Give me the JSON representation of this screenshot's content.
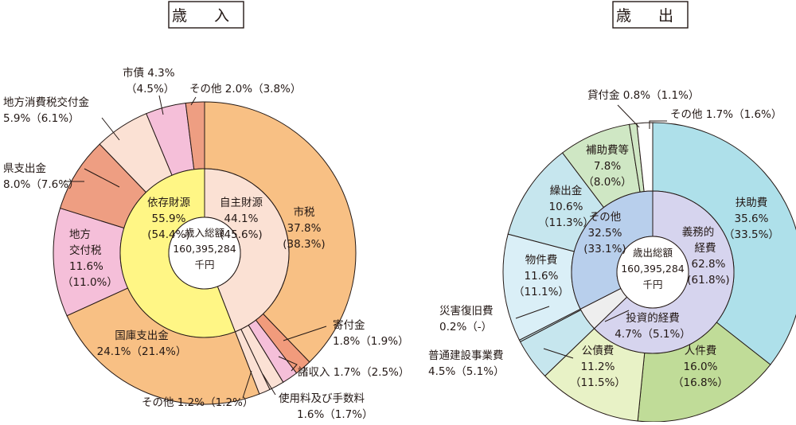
{
  "chart_data": [
    {
      "type": "pie",
      "title": "歳 入",
      "center_label": [
        "歳入総額",
        "160,395,284",
        "千円"
      ],
      "inner_ring": [
        {
          "name": "自主財源",
          "value": 44.1,
          "prev": "(45.6%)",
          "color": "#fbe1d4",
          "text": [
            "自主財源",
            "44.1%",
            "(45.6%)"
          ]
        },
        {
          "name": "依存財源",
          "value": 55.9,
          "prev": "(54.4%)",
          "color": "#fff685",
          "text": [
            "依存財源",
            "55.9%",
            "(54.4%)"
          ]
        }
      ],
      "outer_ring": [
        {
          "name": "市税",
          "value": 37.8,
          "color": "#f8c084",
          "text": [
            "市税",
            "37.8%",
            "(38.3%)"
          ]
        },
        {
          "name": "寄付金",
          "value": 1.8,
          "color": "#f19b7c",
          "text": [
            "寄付金",
            "1.8%（1.9%）"
          ]
        },
        {
          "name": "諸収入",
          "value": 1.7,
          "color": "#f5bfd9",
          "text": [
            "諸収入 1.7%（2.5%）"
          ]
        },
        {
          "name": "使用料及び手数料",
          "value": 1.6,
          "color": "#fbe1d4",
          "text": [
            "使用料及び手数料",
            "1.6%（1.7%）"
          ]
        },
        {
          "name": "その他",
          "value": 1.2,
          "color": "#fbe1d4",
          "text": [
            "その他 1.2%（1.2%）"
          ]
        },
        {
          "name": "国庫支出金",
          "value": 24.1,
          "color": "#f8c084",
          "text": [
            "国庫支出金",
            "24.1%（21.4%）"
          ]
        },
        {
          "name": "地方交付税",
          "value": 11.6,
          "color": "#f5bfd9",
          "text": [
            "地方",
            "交付税",
            "11.6%",
            "（11.0%）"
          ]
        },
        {
          "name": "県支出金",
          "value": 8.0,
          "color": "#ee9e82",
          "text": [
            "県支出金",
            "8.0%（7.6%）"
          ]
        },
        {
          "name": "地方消費税交付金",
          "value": 5.9,
          "color": "#fbe1d4",
          "text": [
            "地方消費税交付金",
            "5.9%（6.1%）"
          ]
        },
        {
          "name": "市債",
          "value": 4.3,
          "color": "#f5bfd9",
          "text": [
            "市債 4.3%",
            "（4.5%）"
          ]
        },
        {
          "name": "その他",
          "value": 2.0,
          "color": "#ee9e82",
          "text": [
            "その他 2.0%（3.8%）"
          ]
        }
      ]
    },
    {
      "type": "pie",
      "title": "歳 出",
      "center_label": [
        "歳出総額",
        "160,395,284",
        "千円"
      ],
      "inner_ring": [
        {
          "name": "義務的経費",
          "value": 62.8,
          "color": "#d6d4ee",
          "text": [
            "義務的",
            "経費",
            "62.8%",
            "(61.8%)"
          ]
        },
        {
          "name": "投資的経費",
          "value": 4.7,
          "color": "#eeeeee",
          "text": [
            "投資的経費",
            "4.7%（5.1%）"
          ]
        },
        {
          "name": "その他",
          "value": 32.5,
          "color": "#b8cfec",
          "text": [
            "その他",
            "32.5%",
            "(33.1%)"
          ]
        }
      ],
      "outer_ring": [
        {
          "name": "扶助費",
          "value": 35.6,
          "color": "#aee0ea",
          "text": [
            "扶助費",
            "35.6%",
            "（33.5%）"
          ]
        },
        {
          "name": "人件費",
          "value": 16.0,
          "color": "#c0dc98",
          "text": [
            "人件費",
            "16.0%",
            "（16.8%）"
          ]
        },
        {
          "name": "公債費",
          "value": 11.2,
          "color": "#e8f2c6",
          "text": [
            "公債費",
            "11.2%",
            "（11.5%）"
          ]
        },
        {
          "name": "普通建設事業費",
          "value": 4.5,
          "color": "#c6e6ee",
          "text": [
            "普通建設事業費",
            "4.5%（5.1%）"
          ]
        },
        {
          "name": "災害復旧費",
          "value": 0.2,
          "color": "#c6e6ee",
          "text": [
            "災害復旧費",
            "0.2%（-）"
          ]
        },
        {
          "name": "物件費",
          "value": 11.6,
          "color": "#daeff7",
          "text": [
            "物件費",
            "11.6%",
            "（11.1%）"
          ]
        },
        {
          "name": "繰出金",
          "value": 10.6,
          "color": "#c6e6ee",
          "text": [
            "繰出金",
            "10.6%",
            "（11.3%）"
          ]
        },
        {
          "name": "補助費等",
          "value": 7.8,
          "color": "#cfe7c4",
          "text": [
            "補助費等",
            "7.8%",
            "（8.0%）"
          ]
        },
        {
          "name": "貸付金",
          "value": 0.8,
          "color": "#cfe7c4",
          "text": [
            "貸付金 0.8%（1.1%）"
          ]
        },
        {
          "name": "その他",
          "value": 1.7,
          "color": "#ffffff",
          "text": [
            "その他 1.7%（1.6%）"
          ]
        }
      ]
    }
  ]
}
